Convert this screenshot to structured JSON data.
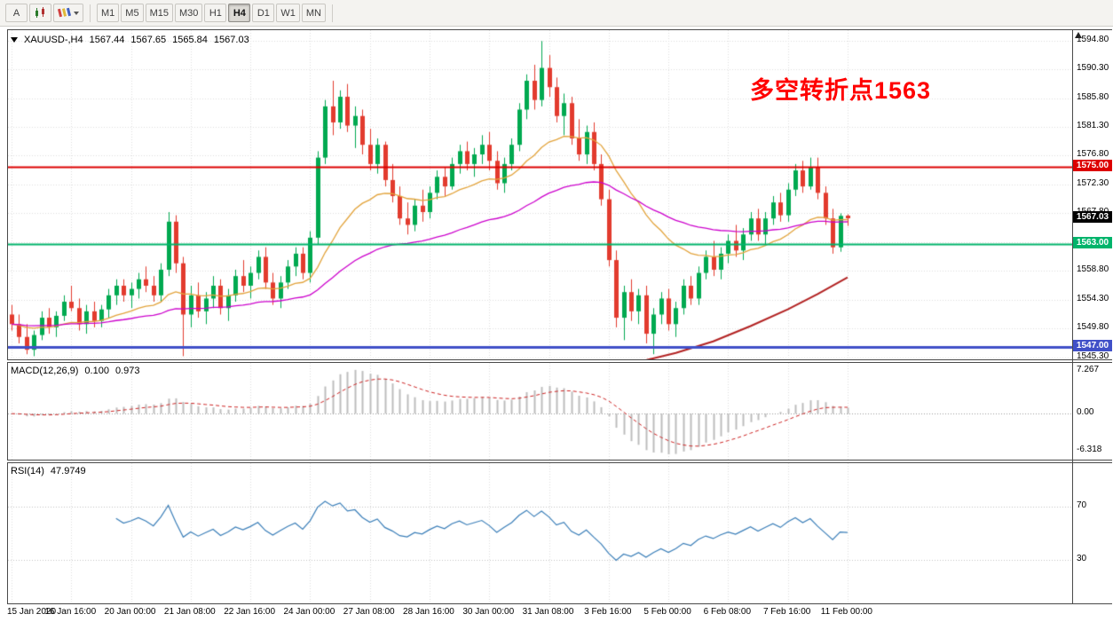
{
  "toolbar": {
    "tool_buttons": [
      {
        "id": "text-tool",
        "label": "A"
      },
      {
        "id": "chart-type",
        "icon": "candlestick-chart-icon"
      },
      {
        "id": "colors",
        "icon": "crayons-icon",
        "has_dropdown": true
      }
    ],
    "timeframes": [
      "M1",
      "M5",
      "M15",
      "M30",
      "H1",
      "H4",
      "D1",
      "W1",
      "MN"
    ],
    "active_timeframe": "H4"
  },
  "main_chart": {
    "legend": {
      "symbol_period": "XAUUSD-,H4",
      "open": "1567.44",
      "high": "1567.65",
      "low": "1565.84",
      "close": "1567.03"
    },
    "annotation": {
      "text": "多空转折点1563",
      "color": "#FF0000"
    },
    "axis_labels": [
      "1594.80",
      "1590.30",
      "1585.80",
      "1581.30",
      "1576.80",
      "1572.30",
      "1567.80",
      "1563.30",
      "1558.80",
      "1554.30",
      "1549.80",
      "1545.30"
    ],
    "levels": [
      {
        "label": "1575.00",
        "value": 1575.0,
        "color": "#DD0000",
        "width": 2
      },
      {
        "label": "1563.00",
        "value": 1563.0,
        "color": "#00B46B",
        "width": 2
      },
      {
        "label": "1547.00",
        "value": 1547.0,
        "color": "#4050C8",
        "width": 3
      }
    ],
    "current_price": {
      "label": "1567.03",
      "value": 1567.03,
      "bg": "#000000"
    }
  },
  "macd_panel": {
    "name": "MACD(12,26,9)",
    "value_main": "0.100",
    "value_signal": "0.973",
    "axis_labels": [
      "7.267",
      "0.00",
      "-6.318"
    ],
    "axis_values": [
      7.267,
      0,
      -6.318
    ]
  },
  "rsi_panel": {
    "name": "RSI(14)",
    "value": "47.9749",
    "axis_labels": [
      "70",
      "30"
    ],
    "axis_values": [
      70,
      30
    ]
  },
  "icons": {
    "legend_expander": "triangle-down-icon",
    "scale_top": "triangle-up-icon",
    "colors_dropdown": "chevron-down-icon"
  },
  "chart_data": {
    "type": "candlestick",
    "symbol": "XAUUSD-",
    "timeframe": "H4",
    "y_range": [
      1545.0,
      1596.4
    ],
    "bars_per_tick": 8,
    "x_tick_labels": [
      "15 Jan 2020",
      "16 Jan 16:00",
      "20 Jan 00:00",
      "21 Jan 08:00",
      "22 Jan 16:00",
      "24 Jan 00:00",
      "27 Jan 08:00",
      "28 Jan 16:00",
      "30 Jan 00:00",
      "31 Jan 08:00",
      "3 Feb 16:00",
      "5 Feb 00:00",
      "6 Feb 08:00",
      "7 Feb 16:00",
      "11 Feb 00:00"
    ],
    "ohlc": [
      [
        1552.0,
        1553.5,
        1549.5,
        1550.5
      ],
      [
        1550.5,
        1552.0,
        1547.5,
        1548.5
      ],
      [
        1548.5,
        1550.5,
        1545.8,
        1546.5
      ],
      [
        1546.5,
        1549.5,
        1545.5,
        1548.8
      ],
      [
        1548.8,
        1552.5,
        1548.0,
        1551.5
      ],
      [
        1551.5,
        1553.0,
        1549.0,
        1550.0
      ],
      [
        1550.0,
        1552.5,
        1548.5,
        1551.8
      ],
      [
        1551.8,
        1555.0,
        1551.0,
        1554.0
      ],
      [
        1554.0,
        1556.5,
        1552.5,
        1553.0
      ],
      [
        1553.0,
        1554.5,
        1549.5,
        1550.5
      ],
      [
        1550.5,
        1553.5,
        1549.0,
        1552.5
      ],
      [
        1552.5,
        1554.0,
        1550.0,
        1551.0
      ],
      [
        1551.0,
        1553.5,
        1550.0,
        1552.8
      ],
      [
        1552.8,
        1556.0,
        1551.5,
        1555.0
      ],
      [
        1555.0,
        1557.5,
        1553.5,
        1556.5
      ],
      [
        1556.5,
        1557.5,
        1554.0,
        1555.0
      ],
      [
        1555.0,
        1557.0,
        1553.0,
        1556.0
      ],
      [
        1556.0,
        1558.5,
        1554.5,
        1557.5
      ],
      [
        1557.5,
        1559.5,
        1555.5,
        1556.5
      ],
      [
        1556.5,
        1558.0,
        1554.0,
        1555.0
      ],
      [
        1555.0,
        1560.0,
        1554.0,
        1559.0
      ],
      [
        1559.0,
        1568.0,
        1558.0,
        1566.5
      ],
      [
        1566.5,
        1567.5,
        1558.5,
        1560.0
      ],
      [
        1560.0,
        1561.0,
        1545.5,
        1552.0
      ],
      [
        1552.0,
        1556.5,
        1550.0,
        1555.0
      ],
      [
        1555.0,
        1557.0,
        1551.5,
        1552.5
      ],
      [
        1552.5,
        1555.5,
        1550.5,
        1554.5
      ],
      [
        1554.5,
        1558.0,
        1553.0,
        1556.5
      ],
      [
        1556.5,
        1557.5,
        1552.0,
        1553.0
      ],
      [
        1553.0,
        1556.0,
        1551.0,
        1555.0
      ],
      [
        1555.0,
        1559.0,
        1554.0,
        1558.0
      ],
      [
        1558.0,
        1560.5,
        1555.5,
        1556.5
      ],
      [
        1556.5,
        1559.5,
        1554.5,
        1558.5
      ],
      [
        1558.5,
        1562.0,
        1557.5,
        1561.0
      ],
      [
        1561.0,
        1562.5,
        1556.0,
        1557.0
      ],
      [
        1557.0,
        1558.5,
        1553.5,
        1554.5
      ],
      [
        1554.5,
        1558.0,
        1553.0,
        1557.0
      ],
      [
        1557.0,
        1560.5,
        1556.0,
        1559.5
      ],
      [
        1559.5,
        1562.5,
        1558.0,
        1561.5
      ],
      [
        1561.5,
        1562.5,
        1557.5,
        1558.5
      ],
      [
        1558.5,
        1565.0,
        1557.0,
        1564.0
      ],
      [
        1564.0,
        1577.5,
        1563.0,
        1576.5
      ],
      [
        1576.5,
        1585.5,
        1575.5,
        1584.5
      ],
      [
        1584.5,
        1588.5,
        1580.0,
        1582.0
      ],
      [
        1582.0,
        1587.0,
        1581.0,
        1586.0
      ],
      [
        1586.0,
        1588.0,
        1580.5,
        1581.5
      ],
      [
        1581.5,
        1584.5,
        1578.0,
        1583.0
      ],
      [
        1583.0,
        1584.0,
        1577.0,
        1578.5
      ],
      [
        1578.5,
        1581.0,
        1574.5,
        1575.5
      ],
      [
        1575.5,
        1579.5,
        1574.0,
        1578.5
      ],
      [
        1578.5,
        1579.0,
        1572.0,
        1573.0
      ],
      [
        1573.0,
        1575.5,
        1569.5,
        1570.5
      ],
      [
        1570.5,
        1572.0,
        1566.0,
        1567.0
      ],
      [
        1567.0,
        1569.5,
        1564.5,
        1566.0
      ],
      [
        1566.0,
        1570.0,
        1565.0,
        1569.0
      ],
      [
        1569.0,
        1571.5,
        1566.5,
        1568.0
      ],
      [
        1568.0,
        1572.0,
        1567.0,
        1571.0
      ],
      [
        1571.0,
        1574.5,
        1570.0,
        1573.5
      ],
      [
        1573.5,
        1575.0,
        1570.5,
        1572.0
      ],
      [
        1572.0,
        1576.5,
        1571.5,
        1575.5
      ],
      [
        1575.5,
        1578.5,
        1574.0,
        1577.5
      ],
      [
        1577.5,
        1579.0,
        1574.5,
        1575.5
      ],
      [
        1575.5,
        1578.0,
        1573.5,
        1577.0
      ],
      [
        1577.0,
        1580.0,
        1575.5,
        1578.5
      ],
      [
        1578.5,
        1580.5,
        1574.5,
        1576.0
      ],
      [
        1576.0,
        1577.5,
        1571.5,
        1572.5
      ],
      [
        1572.5,
        1576.5,
        1571.0,
        1575.5
      ],
      [
        1575.5,
        1579.5,
        1574.5,
        1578.5
      ],
      [
        1578.5,
        1585.0,
        1577.5,
        1584.0
      ],
      [
        1584.0,
        1589.5,
        1582.5,
        1588.5
      ],
      [
        1588.5,
        1591.0,
        1584.0,
        1585.5
      ],
      [
        1585.5,
        1594.7,
        1584.5,
        1590.5
      ],
      [
        1590.5,
        1592.5,
        1586.0,
        1587.5
      ],
      [
        1587.5,
        1589.0,
        1582.0,
        1583.0
      ],
      [
        1583.0,
        1586.5,
        1580.0,
        1585.0
      ],
      [
        1585.0,
        1586.0,
        1578.5,
        1579.5
      ],
      [
        1579.5,
        1582.5,
        1576.0,
        1577.0
      ],
      [
        1577.0,
        1581.5,
        1575.5,
        1580.5
      ],
      [
        1580.5,
        1582.0,
        1574.5,
        1575.5
      ],
      [
        1575.5,
        1577.0,
        1569.0,
        1570.0
      ],
      [
        1570.0,
        1571.5,
        1559.5,
        1560.5
      ],
      [
        1560.5,
        1562.0,
        1550.0,
        1551.5
      ],
      [
        1551.5,
        1556.5,
        1548.0,
        1555.5
      ],
      [
        1555.5,
        1557.5,
        1551.0,
        1552.5
      ],
      [
        1552.5,
        1556.0,
        1550.5,
        1555.0
      ],
      [
        1555.0,
        1556.5,
        1547.5,
        1549.0
      ],
      [
        1549.0,
        1553.0,
        1545.8,
        1552.0
      ],
      [
        1552.0,
        1555.5,
        1550.5,
        1554.5
      ],
      [
        1554.5,
        1556.0,
        1549.5,
        1550.5
      ],
      [
        1550.5,
        1554.0,
        1548.5,
        1553.0
      ],
      [
        1553.0,
        1557.5,
        1552.0,
        1556.5
      ],
      [
        1556.5,
        1558.0,
        1553.5,
        1554.5
      ],
      [
        1554.5,
        1559.5,
        1553.5,
        1558.5
      ],
      [
        1558.5,
        1562.0,
        1557.5,
        1561.0
      ],
      [
        1561.0,
        1563.5,
        1558.0,
        1559.0
      ],
      [
        1559.0,
        1562.5,
        1557.5,
        1561.5
      ],
      [
        1561.5,
        1564.5,
        1560.0,
        1563.5
      ],
      [
        1563.5,
        1566.0,
        1561.0,
        1562.0
      ],
      [
        1562.0,
        1565.5,
        1560.5,
        1564.5
      ],
      [
        1564.5,
        1568.0,
        1563.5,
        1567.0
      ],
      [
        1567.0,
        1568.5,
        1563.5,
        1564.5
      ],
      [
        1564.5,
        1568.0,
        1563.0,
        1567.0
      ],
      [
        1567.0,
        1570.5,
        1566.0,
        1569.5
      ],
      [
        1569.5,
        1571.0,
        1566.5,
        1567.5
      ],
      [
        1567.5,
        1572.5,
        1566.5,
        1571.5
      ],
      [
        1571.5,
        1575.5,
        1570.5,
        1574.5
      ],
      [
        1574.5,
        1576.0,
        1571.0,
        1572.0
      ],
      [
        1572.0,
        1576.5,
        1571.5,
        1575.0
      ],
      [
        1575.0,
        1576.5,
        1570.0,
        1571.0
      ],
      [
        1571.0,
        1572.0,
        1566.0,
        1567.0
      ],
      [
        1567.0,
        1568.5,
        1561.5,
        1562.5
      ],
      [
        1562.5,
        1567.8,
        1561.8,
        1567.4
      ],
      [
        1567.44,
        1567.65,
        1565.84,
        1567.03
      ]
    ],
    "overlays": {
      "ma_fast": {
        "kind": "ema",
        "period": 21,
        "color": "#E2A33B"
      },
      "ma_slow": {
        "kind": "ema",
        "period": 55,
        "color": "#CC00CC"
      },
      "ma_long": {
        "kind": "polyline",
        "color": "#B22222",
        "points": [
          [
            84,
            1544.6
          ],
          [
            89,
            1546.0
          ],
          [
            94,
            1547.8
          ],
          [
            99,
            1550.2
          ],
          [
            104,
            1552.8
          ],
          [
            108,
            1555.2
          ],
          [
            112,
            1557.8
          ]
        ]
      }
    },
    "indicators": {
      "macd": {
        "fast": 12,
        "slow": 26,
        "signal_period": 9,
        "main": 0.1,
        "signal": 0.973,
        "hist_color": "#BDBDBD",
        "signal_color": "#CC2222",
        "range": [
          -7.0,
          7.8
        ]
      },
      "rsi": {
        "period": 14,
        "value": 47.9749,
        "color": "#3A7EB8",
        "levels": [
          70,
          30
        ]
      }
    },
    "colors": {
      "up": "#00A950",
      "down": "#E23B2E",
      "grid": "#DEDEDE"
    }
  }
}
